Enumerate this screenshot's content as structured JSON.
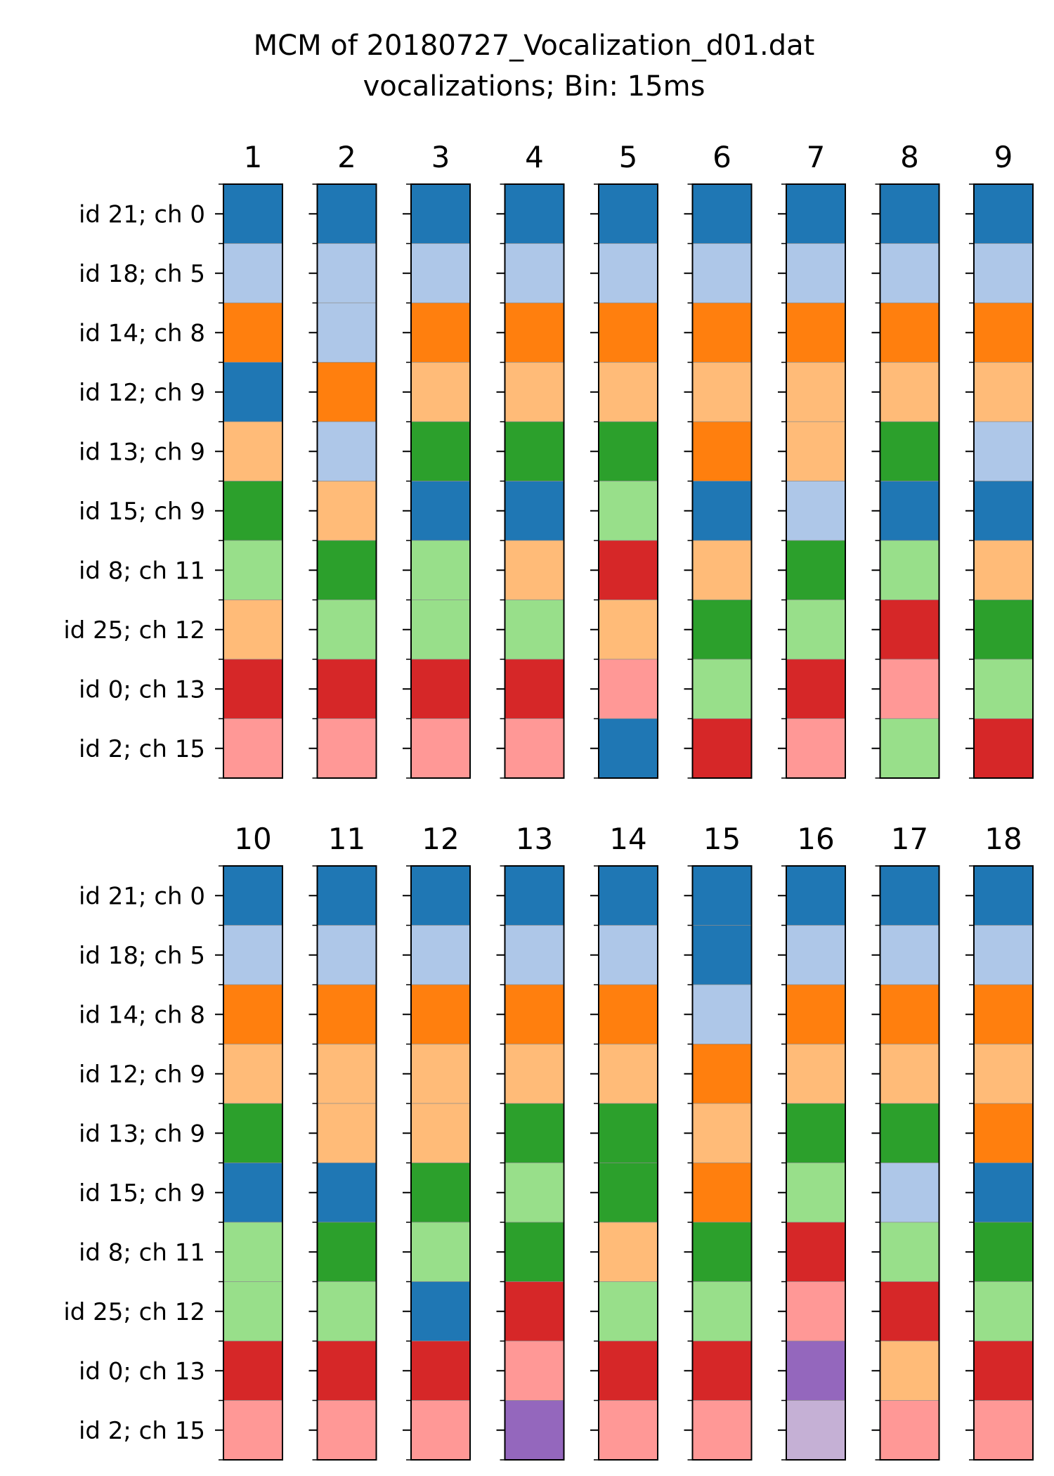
{
  "chart_data": {
    "type": "heatmap",
    "title": "MCM of 20180727_Vocalization_d01.dat",
    "subtitle": "vocalizations; Bin: 15ms",
    "row_labels": [
      "id 21; ch 0",
      "id 18; ch 5",
      "id 14; ch 8",
      "id 12; ch 9",
      "id 13; ch 9",
      "id 15; ch 9",
      "id 8; ch 11",
      "id 25; ch 12",
      "id 0; ch 13",
      "id 2; ch 15"
    ],
    "palette": {
      "0": "#1f77b4",
      "1": "#aec7e8",
      "2": "#ff7f0e",
      "3": "#ffbb78",
      "4": "#2ca02c",
      "5": "#98df8a",
      "6": "#d62728",
      "7": "#ff9896",
      "8": "#9467bd",
      "9": "#c5b0d5"
    },
    "panels": [
      {
        "columns": [
          {
            "label": "1",
            "values": [
              0,
              1,
              2,
              0,
              3,
              4,
              5,
              3,
              6,
              7
            ]
          },
          {
            "label": "2",
            "values": [
              0,
              1,
              1,
              2,
              1,
              3,
              4,
              5,
              6,
              7
            ]
          },
          {
            "label": "3",
            "values": [
              0,
              1,
              2,
              3,
              4,
              0,
              5,
              5,
              6,
              7
            ]
          },
          {
            "label": "4",
            "values": [
              0,
              1,
              2,
              3,
              4,
              0,
              3,
              5,
              6,
              7
            ]
          },
          {
            "label": "5",
            "values": [
              0,
              1,
              2,
              3,
              4,
              5,
              6,
              3,
              7,
              0
            ]
          },
          {
            "label": "6",
            "values": [
              0,
              1,
              2,
              3,
              2,
              0,
              3,
              4,
              5,
              6
            ]
          },
          {
            "label": "7",
            "values": [
              0,
              1,
              2,
              3,
              3,
              1,
              4,
              5,
              6,
              7
            ]
          },
          {
            "label": "8",
            "values": [
              0,
              1,
              2,
              3,
              4,
              0,
              5,
              6,
              7,
              5
            ]
          },
          {
            "label": "9",
            "values": [
              0,
              1,
              2,
              3,
              1,
              0,
              3,
              4,
              5,
              6
            ]
          }
        ]
      },
      {
        "columns": [
          {
            "label": "10",
            "values": [
              0,
              1,
              2,
              3,
              4,
              0,
              5,
              5,
              6,
              7
            ]
          },
          {
            "label": "11",
            "values": [
              0,
              1,
              2,
              3,
              3,
              0,
              4,
              5,
              6,
              7
            ]
          },
          {
            "label": "12",
            "values": [
              0,
              1,
              2,
              3,
              3,
              4,
              5,
              0,
              6,
              7
            ]
          },
          {
            "label": "13",
            "values": [
              0,
              1,
              2,
              3,
              4,
              5,
              4,
              6,
              7,
              8
            ]
          },
          {
            "label": "14",
            "values": [
              0,
              1,
              2,
              3,
              4,
              4,
              3,
              5,
              6,
              7
            ]
          },
          {
            "label": "15",
            "values": [
              0,
              0,
              1,
              2,
              3,
              2,
              4,
              5,
              6,
              7
            ]
          },
          {
            "label": "16",
            "values": [
              0,
              1,
              2,
              3,
              4,
              5,
              6,
              7,
              8,
              9
            ]
          },
          {
            "label": "17",
            "values": [
              0,
              1,
              2,
              3,
              4,
              1,
              5,
              6,
              3,
              7
            ]
          },
          {
            "label": "18",
            "values": [
              0,
              1,
              2,
              3,
              2,
              0,
              4,
              5,
              6,
              7
            ]
          }
        ]
      }
    ]
  }
}
